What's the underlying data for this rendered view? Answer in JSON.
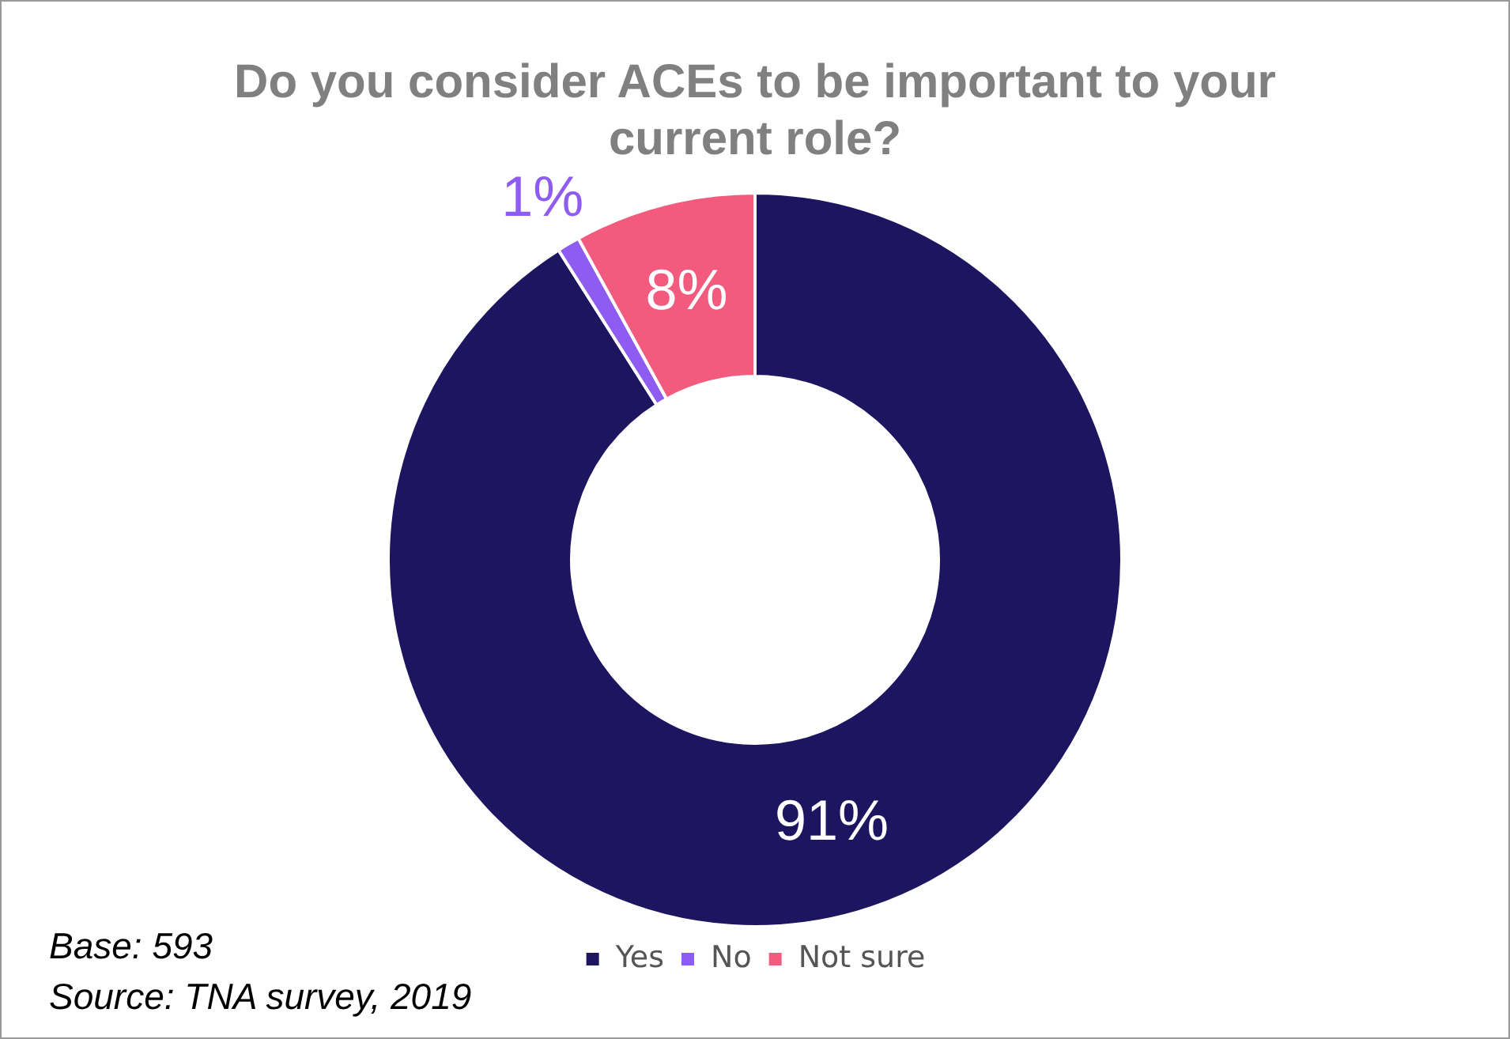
{
  "chart_data": {
    "type": "donut",
    "title": "Do you consider ACEs to be important to your current role?",
    "categories": [
      "Yes",
      "No",
      "Not sure"
    ],
    "values": [
      91,
      1,
      8
    ],
    "colors": [
      "#1d1560",
      "#8e5cf0",
      "#f25a7e"
    ],
    "value_labels": [
      "91%",
      "1%",
      "8%"
    ],
    "legend": "bottom",
    "annotations": [
      "Base: 593",
      "Source: TNA survey, 2019"
    ]
  }
}
